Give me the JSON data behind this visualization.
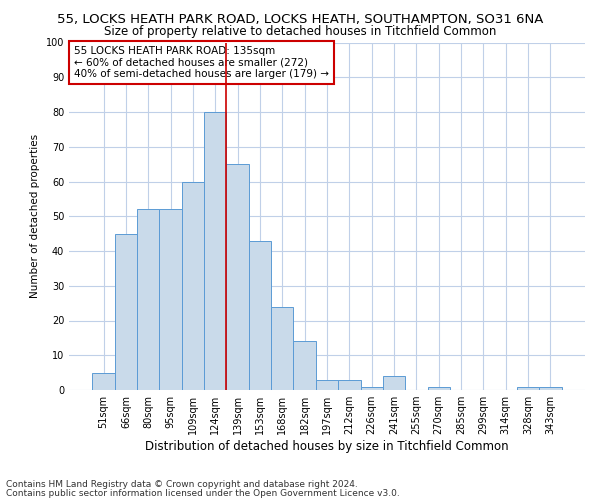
{
  "title1": "55, LOCKS HEATH PARK ROAD, LOCKS HEATH, SOUTHAMPTON, SO31 6NA",
  "title2": "Size of property relative to detached houses in Titchfield Common",
  "xlabel": "Distribution of detached houses by size in Titchfield Common",
  "ylabel": "Number of detached properties",
  "categories": [
    "51sqm",
    "66sqm",
    "80sqm",
    "95sqm",
    "109sqm",
    "124sqm",
    "139sqm",
    "153sqm",
    "168sqm",
    "182sqm",
    "197sqm",
    "212sqm",
    "226sqm",
    "241sqm",
    "255sqm",
    "270sqm",
    "285sqm",
    "299sqm",
    "314sqm",
    "328sqm",
    "343sqm"
  ],
  "values": [
    5,
    45,
    52,
    52,
    60,
    80,
    65,
    43,
    24,
    14,
    3,
    3,
    1,
    4,
    0,
    1,
    0,
    0,
    0,
    1,
    1
  ],
  "bar_color": "#c9daea",
  "bar_edge_color": "#5b9bd5",
  "grid_color": "#c0d0e8",
  "vline_color": "#cc0000",
  "vline_x_index": 6,
  "annotation_text": "55 LOCKS HEATH PARK ROAD: 135sqm\n← 60% of detached houses are smaller (272)\n40% of semi-detached houses are larger (179) →",
  "annotation_box_color": "#ffffff",
  "annotation_box_edge": "#cc0000",
  "ylim": [
    0,
    100
  ],
  "yticks": [
    0,
    10,
    20,
    30,
    40,
    50,
    60,
    70,
    80,
    90,
    100
  ],
  "footer1": "Contains HM Land Registry data © Crown copyright and database right 2024.",
  "footer2": "Contains public sector information licensed under the Open Government Licence v3.0.",
  "title1_fontsize": 9.5,
  "title2_fontsize": 8.5,
  "xlabel_fontsize": 8.5,
  "ylabel_fontsize": 7.5,
  "tick_fontsize": 7,
  "annot_fontsize": 7.5,
  "footer_fontsize": 6.5,
  "bg_color": "#ffffff"
}
